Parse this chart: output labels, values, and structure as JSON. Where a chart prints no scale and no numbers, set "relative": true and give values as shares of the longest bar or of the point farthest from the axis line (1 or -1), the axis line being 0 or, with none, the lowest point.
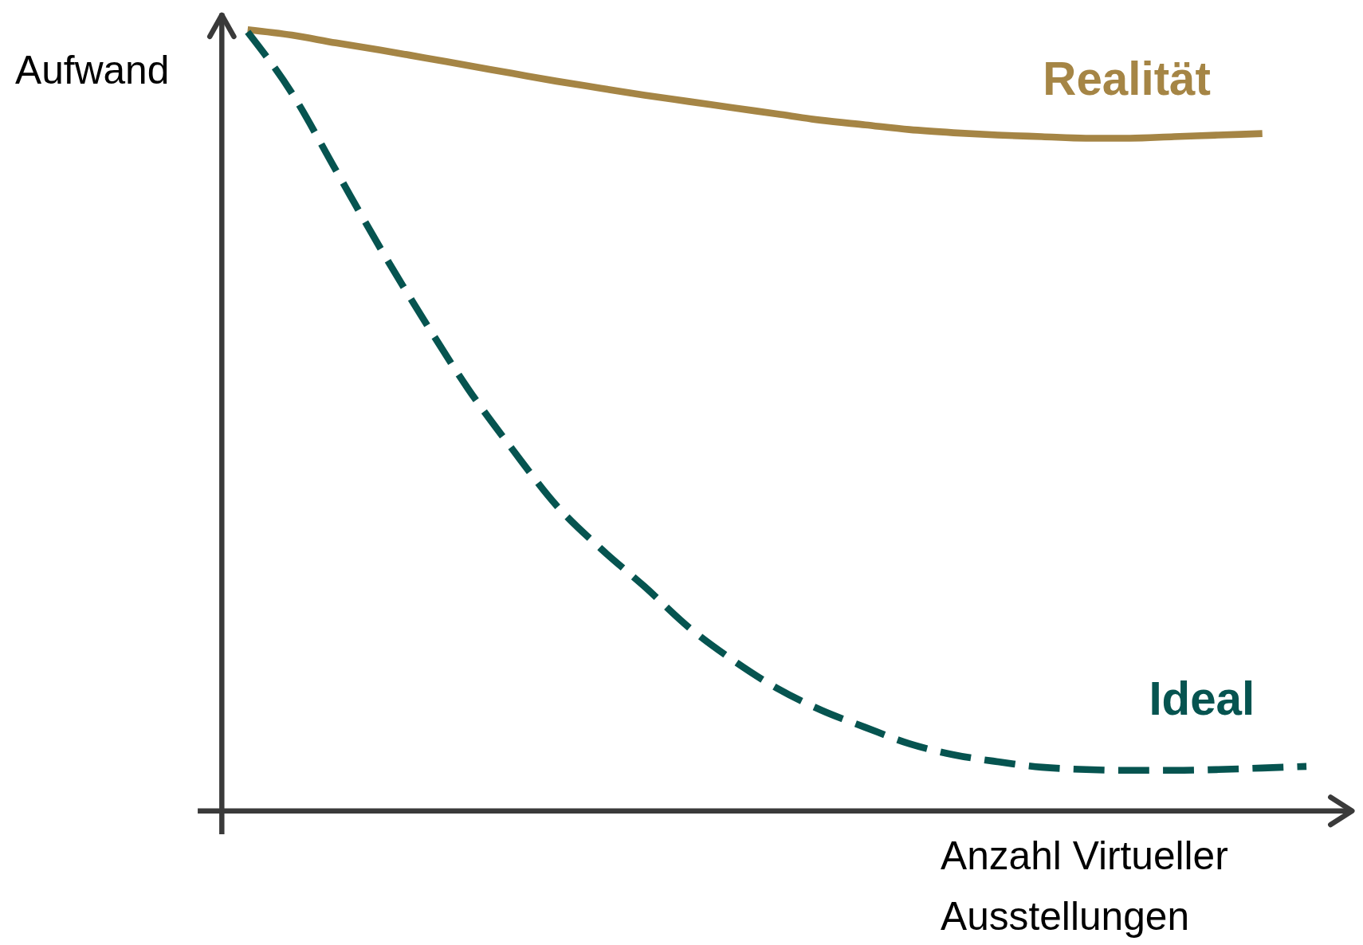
{
  "chart_data": {
    "type": "line",
    "relative": true,
    "ylabel": "Aufwand",
    "xlabel": "Anzahl Virtueller Ausstellungen",
    "legend": false,
    "marker": "none",
    "categories": [
      null,
      null,
      null,
      null,
      null,
      null,
      null,
      null,
      null,
      null,
      null,
      null,
      null,
      null,
      null,
      null,
      null,
      null,
      null,
      null,
      null,
      null,
      null,
      null,
      null
    ],
    "series": [
      {
        "name": "Realität",
        "color": "#a58545",
        "line_style": "solid",
        "values": [
          1,
          0.993,
          0.983,
          0.974,
          0.964,
          0.954,
          0.944,
          0.934,
          0.925,
          0.916,
          0.908,
          0.9,
          0.892,
          0.884,
          0.878,
          0.872,
          0.868,
          0.865,
          0.863,
          0.861,
          0.861,
          0.863,
          0.865,
          0.867,
          null
        ]
      },
      {
        "name": "Ideal",
        "color": "#065450",
        "line_style": "dashed",
        "values": [
          0.997,
          0.919,
          0.82,
          0.721,
          0.628,
          0.54,
          0.463,
          0.391,
          0.336,
          0.287,
          0.235,
          0.193,
          0.157,
          0.129,
          0.107,
          0.086,
          0.072,
          0.063,
          0.056,
          0.053,
          0.052,
          0.052,
          0.053,
          0.055,
          0.057
        ]
      }
    ]
  }
}
